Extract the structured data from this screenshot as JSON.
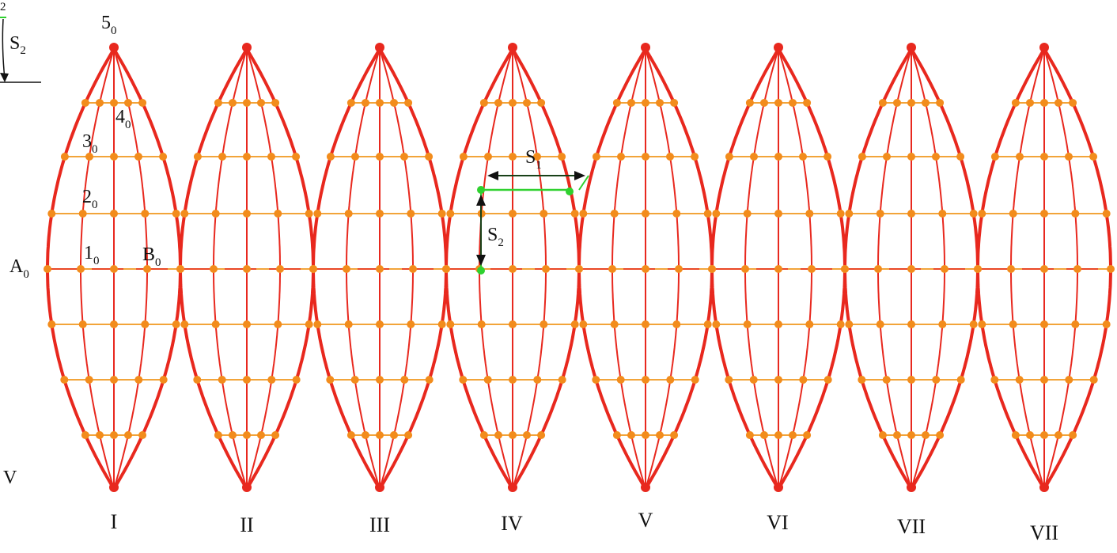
{
  "colors": {
    "outline": "#e8281e",
    "grid": "#f2a43a",
    "node": "#f28c1c",
    "vertex": "#e8281e",
    "highlight": "#2fd12f",
    "arrow": "#111111"
  },
  "gores": [
    {
      "label": "I"
    },
    {
      "label": "II"
    },
    {
      "label": "III"
    },
    {
      "label": "IV"
    },
    {
      "label": "V"
    },
    {
      "label": "VI"
    },
    {
      "label": "VII"
    },
    {
      "label": "VII"
    }
  ],
  "point_labels": {
    "pole": {
      "base": "5",
      "sub": "0"
    },
    "p4": {
      "base": "4",
      "sub": "0"
    },
    "p3": {
      "base": "3",
      "sub": "0"
    },
    "p2": {
      "base": "2",
      "sub": "0"
    },
    "p1": {
      "base": "1",
      "sub": "0"
    },
    "a": {
      "base": "A",
      "sub": "0"
    },
    "b": {
      "base": "B",
      "sub": "0"
    }
  },
  "distances": {
    "s1": {
      "base": "S",
      "sub": "1"
    },
    "s2": {
      "base": "S",
      "sub": "2"
    },
    "s2_corner": {
      "base": "S",
      "sub": "2"
    }
  },
  "edge_labels": {
    "left_v": "V",
    "corner_digit": "2"
  }
}
